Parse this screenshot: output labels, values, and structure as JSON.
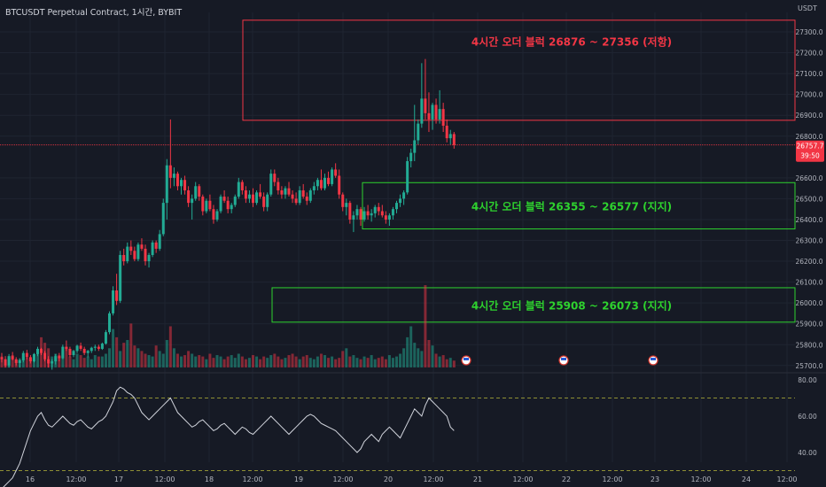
{
  "header": {
    "title": "BTCUSDT Perpetual Contract, 1시간, BYBIT"
  },
  "colors": {
    "up": "#22ab94",
    "down": "#f23645",
    "bg": "#161a25",
    "grid": "#1f2431",
    "resistance": "#f23645",
    "support": "#2ed22e",
    "rsi_line": "#d1d4dc",
    "rsi_band": "#b8b83a"
  },
  "chart_data": [
    {
      "type": "candlestick",
      "title": "BTCUSDT Perpetual Contract, 1시간, BYBIT",
      "price_axis": {
        "unit": "USDT",
        "ticks": [
          "27300.0",
          "27200.0",
          "27100.0",
          "27000.0",
          "26900.0",
          "26800.0",
          "26600.0",
          "26500.0",
          "26400.0",
          "26300.0",
          "26200.0",
          "26100.0",
          "26000.0",
          "25900.0",
          "25800.0",
          "25700.0"
        ],
        "ylim": [
          25700,
          27400
        ]
      },
      "time_axis": {
        "ticks": [
          "16",
          "12:00",
          "17",
          "12:00",
          "18",
          "12:00",
          "19",
          "12:00",
          "20",
          "12:00",
          "21",
          "12:00",
          "22",
          "12:00",
          "23",
          "12:00",
          "24",
          "12:00"
        ]
      },
      "last_price": {
        "value": "26757.7",
        "countdown": "39:50"
      },
      "zones": [
        {
          "label": "4시간 오더 블럭 26876 ~ 27356 (저항)",
          "low": 26876,
          "high": 27356,
          "kind": "resistance"
        },
        {
          "label": "4시간 오더 블럭 26355 ~ 26577 (지지)",
          "low": 26355,
          "high": 26577,
          "kind": "support"
        },
        {
          "label": "4시간 오더 블럭 25908 ~ 26073 (지지)",
          "low": 25908,
          "high": 26073,
          "kind": "support"
        }
      ],
      "candles_ohlc": [
        [
          25740,
          25760,
          25715,
          25730
        ],
        [
          25730,
          25745,
          25690,
          25700
        ],
        [
          25700,
          25755,
          25690,
          25745
        ],
        [
          25745,
          25765,
          25725,
          25730
        ],
        [
          25730,
          25740,
          25700,
          25712
        ],
        [
          25712,
          25735,
          25690,
          25725
        ],
        [
          25725,
          25770,
          25715,
          25760
        ],
        [
          25760,
          25775,
          25730,
          25740
        ],
        [
          25740,
          25750,
          25710,
          25720
        ],
        [
          25720,
          25760,
          25715,
          25755
        ],
        [
          25755,
          25790,
          25745,
          25780
        ],
        [
          25780,
          25785,
          25750,
          25760
        ],
        [
          25760,
          25770,
          25720,
          25730
        ],
        [
          25730,
          25745,
          25690,
          25710
        ],
        [
          25710,
          25730,
          25680,
          25720
        ],
        [
          25720,
          25755,
          25705,
          25745
        ],
        [
          25745,
          25760,
          25720,
          25735
        ],
        [
          25735,
          25800,
          25730,
          25790
        ],
        [
          25790,
          25820,
          25770,
          25780
        ],
        [
          25780,
          25790,
          25740,
          25750
        ],
        [
          25750,
          25775,
          25740,
          25770
        ],
        [
          25770,
          25800,
          25760,
          25795
        ],
        [
          25795,
          25810,
          25770,
          25780
        ],
        [
          25780,
          25790,
          25750,
          25760
        ],
        [
          25760,
          25775,
          25740,
          25770
        ],
        [
          25770,
          25790,
          25760,
          25785
        ],
        [
          25785,
          25800,
          25770,
          25790
        ],
        [
          25790,
          25800,
          25770,
          25780
        ],
        [
          25780,
          25810,
          25775,
          25805
        ],
        [
          25805,
          25870,
          25800,
          25860
        ],
        [
          25860,
          25960,
          25850,
          25950
        ],
        [
          25950,
          26080,
          25940,
          26060
        ],
        [
          26060,
          26140,
          25990,
          26010
        ],
        [
          26010,
          26250,
          26000,
          26230
        ],
        [
          26230,
          26260,
          26180,
          26200
        ],
        [
          26200,
          26290,
          26190,
          26270
        ],
        [
          26270,
          26300,
          26230,
          26250
        ],
        [
          26250,
          26270,
          26200,
          26210
        ],
        [
          26210,
          26290,
          26200,
          26280
        ],
        [
          26280,
          26310,
          26250,
          26260
        ],
        [
          26260,
          26280,
          26180,
          26200
        ],
        [
          26200,
          26240,
          26170,
          26230
        ],
        [
          26230,
          26300,
          26220,
          26290
        ],
        [
          26290,
          26300,
          26240,
          26260
        ],
        [
          26260,
          26350,
          26250,
          26330
        ],
        [
          26330,
          26500,
          26320,
          26480
        ],
        [
          26480,
          26690,
          26400,
          26660
        ],
        [
          26660,
          26880,
          26550,
          26600
        ],
        [
          26600,
          26650,
          26560,
          26620
        ],
        [
          26620,
          26630,
          26540,
          26560
        ],
        [
          26560,
          26600,
          26520,
          26590
        ],
        [
          26590,
          26610,
          26520,
          26540
        ],
        [
          26540,
          26560,
          26460,
          26480
        ],
        [
          26480,
          26520,
          26400,
          26500
        ],
        [
          26500,
          26580,
          26490,
          26560
        ],
        [
          26560,
          26570,
          26490,
          26510
        ],
        [
          26510,
          26520,
          26420,
          26440
        ],
        [
          26440,
          26500,
          26430,
          26490
        ],
        [
          26490,
          26520,
          26440,
          26450
        ],
        [
          26450,
          26470,
          26380,
          26400
        ],
        [
          26400,
          26450,
          26390,
          26440
        ],
        [
          26440,
          26520,
          26430,
          26510
        ],
        [
          26510,
          26540,
          26480,
          26490
        ],
        [
          26490,
          26510,
          26430,
          26450
        ],
        [
          26450,
          26480,
          26430,
          26470
        ],
        [
          26470,
          26520,
          26460,
          26510
        ],
        [
          26510,
          26600,
          26500,
          26580
        ],
        [
          26580,
          26590,
          26520,
          26540
        ],
        [
          26540,
          26560,
          26480,
          26500
        ],
        [
          26500,
          26540,
          26480,
          26520
        ],
        [
          26520,
          26550,
          26460,
          26480
        ],
        [
          26480,
          26540,
          26470,
          26530
        ],
        [
          26530,
          26570,
          26500,
          26510
        ],
        [
          26510,
          26530,
          26440,
          26460
        ],
        [
          26460,
          26530,
          26440,
          26520
        ],
        [
          26520,
          26640,
          26510,
          26620
        ],
        [
          26620,
          26640,
          26560,
          26580
        ],
        [
          26580,
          26600,
          26520,
          26540
        ],
        [
          26540,
          26560,
          26500,
          26520
        ],
        [
          26520,
          26560,
          26500,
          26550
        ],
        [
          26550,
          26580,
          26510,
          26520
        ],
        [
          26520,
          26540,
          26480,
          26500
        ],
        [
          26500,
          26530,
          26470,
          26480
        ],
        [
          26480,
          26560,
          26470,
          26540
        ],
        [
          26540,
          26570,
          26500,
          26510
        ],
        [
          26510,
          26530,
          26470,
          26490
        ],
        [
          26490,
          26550,
          26480,
          26540
        ],
        [
          26540,
          26580,
          26520,
          26560
        ],
        [
          26560,
          26600,
          26540,
          26590
        ],
        [
          26590,
          26640,
          26540,
          26550
        ],
        [
          26550,
          26620,
          26540,
          26600
        ],
        [
          26600,
          26630,
          26560,
          26570
        ],
        [
          26570,
          26650,
          26560,
          26640
        ],
        [
          26640,
          26670,
          26600,
          26610
        ],
        [
          26610,
          26640,
          26500,
          26520
        ],
        [
          26520,
          26530,
          26440,
          26460
        ],
        [
          26460,
          26500,
          26420,
          26480
        ],
        [
          26480,
          26490,
          26380,
          26400
        ],
        [
          26400,
          26440,
          26340,
          26420
        ],
        [
          26420,
          26470,
          26400,
          26450
        ],
        [
          26450,
          26460,
          26370,
          26400
        ],
        [
          26400,
          26460,
          26390,
          26440
        ],
        [
          26440,
          26470,
          26400,
          26420
        ],
        [
          26420,
          26450,
          26390,
          26430
        ],
        [
          26430,
          26470,
          26410,
          26460
        ],
        [
          26460,
          26480,
          26420,
          26440
        ],
        [
          26440,
          26470,
          26410,
          26420
        ],
        [
          26420,
          26440,
          26380,
          26400
        ],
        [
          26400,
          26430,
          26370,
          26420
        ],
        [
          26420,
          26460,
          26400,
          26450
        ],
        [
          26450,
          26490,
          26430,
          26480
        ],
        [
          26480,
          26520,
          26460,
          26500
        ],
        [
          26500,
          26540,
          26470,
          26530
        ],
        [
          26530,
          26700,
          26520,
          26680
        ],
        [
          26680,
          26740,
          26650,
          26720
        ],
        [
          26720,
          26950,
          26680,
          26780
        ],
        [
          26780,
          26880,
          26760,
          26860
        ],
        [
          26860,
          27150,
          26840,
          26980
        ],
        [
          26980,
          27170,
          26880,
          26910
        ],
        [
          26910,
          27010,
          26820,
          26880
        ],
        [
          26880,
          26960,
          26830,
          26950
        ],
        [
          26950,
          26980,
          26860,
          26880
        ],
        [
          26880,
          27020,
          26860,
          26930
        ],
        [
          26930,
          26960,
          26820,
          26850
        ],
        [
          26850,
          26880,
          26770,
          26790
        ],
        [
          26790,
          26830,
          26760,
          26810
        ],
        [
          26810,
          26820,
          26740,
          26757
        ]
      ],
      "volume": [
        8,
        6,
        7,
        9,
        5,
        6,
        8,
        7,
        6,
        9,
        10,
        22,
        18,
        14,
        8,
        10,
        9,
        12,
        15,
        8,
        6,
        10,
        9,
        7,
        8,
        6,
        9,
        8,
        8,
        10,
        14,
        28,
        22,
        12,
        18,
        20,
        32,
        16,
        14,
        12,
        10,
        9,
        8,
        16,
        12,
        10,
        20,
        30,
        14,
        10,
        8,
        9,
        12,
        10,
        8,
        9,
        8,
        6,
        10,
        7,
        9,
        8,
        6,
        8,
        9,
        7,
        10,
        8,
        6,
        7,
        9,
        8,
        6,
        8,
        7,
        9,
        10,
        8,
        6,
        7,
        9,
        10,
        8,
        6,
        8,
        9,
        7,
        6,
        8,
        10,
        9,
        7,
        8,
        6,
        7,
        12,
        14,
        8,
        9,
        7,
        6,
        8,
        7,
        9,
        6,
        7,
        8,
        6,
        9,
        7,
        8,
        10,
        14,
        22,
        30,
        18,
        14,
        12,
        60,
        20,
        16,
        10,
        8,
        9,
        6,
        7,
        5
      ],
      "rsi": {
        "ticks": [
          "80.00",
          "60.00",
          "40.00"
        ],
        "levels": [
          70,
          30
        ],
        "values": [
          20,
          22,
          24,
          26,
          30,
          34,
          40,
          46,
          52,
          56,
          60,
          62,
          58,
          55,
          54,
          56,
          58,
          60,
          58,
          56,
          55,
          57,
          58,
          56,
          54,
          53,
          55,
          57,
          58,
          60,
          64,
          68,
          74,
          76,
          75,
          73,
          72,
          70,
          66,
          62,
          60,
          58,
          60,
          62,
          64,
          66,
          68,
          70,
          66,
          62,
          60,
          58,
          56,
          54,
          55,
          57,
          58,
          56,
          54,
          52,
          53,
          55,
          56,
          54,
          52,
          50,
          52,
          54,
          53,
          51,
          50,
          52,
          54,
          56,
          58,
          60,
          58,
          56,
          54,
          52,
          50,
          52,
          54,
          56,
          58,
          60,
          61,
          60,
          58,
          56,
          55,
          54,
          53,
          52,
          50,
          48,
          46,
          44,
          42,
          40,
          42,
          46,
          48,
          50,
          48,
          46,
          50,
          52,
          54,
          52,
          50,
          48,
          52,
          56,
          60,
          64,
          62,
          60,
          66,
          70,
          68,
          66,
          64,
          62,
          60,
          54,
          52
        ]
      }
    }
  ]
}
